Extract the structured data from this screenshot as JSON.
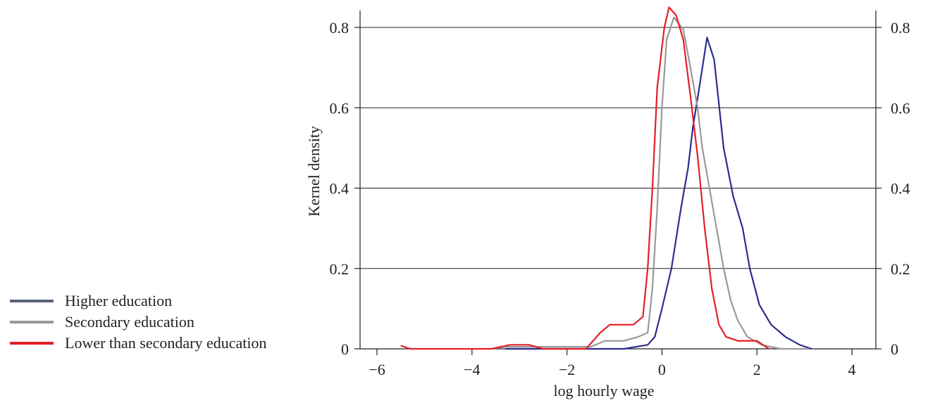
{
  "chart_data": {
    "type": "line",
    "title": "",
    "xlabel": "log hourly wage",
    "ylabel": "Kernel density",
    "xlim": [
      -6.3,
      4.6
    ],
    "ylim": [
      0,
      0.85
    ],
    "xticks": [
      -6,
      -4,
      -2,
      0,
      2,
      4
    ],
    "xtick_labels": [
      "−6",
      "−4",
      "−2",
      "0",
      "2",
      "4"
    ],
    "yticks": [
      0,
      0.2,
      0.4,
      0.6,
      0.8
    ],
    "ytick_labels": [
      "0",
      "0.2",
      "0.4",
      "0.6",
      "0.8"
    ],
    "grid": "horizontal",
    "legend_position": "left",
    "series": [
      {
        "name": "Higher education",
        "legend_color": "#5a6478",
        "line_color": "#2b2e8c",
        "points": [
          [
            -3.3,
            0.0
          ],
          [
            -2.0,
            0.0
          ],
          [
            -0.8,
            0.0
          ],
          [
            -0.3,
            0.01
          ],
          [
            -0.15,
            0.03
          ],
          [
            0.0,
            0.1
          ],
          [
            0.2,
            0.2
          ],
          [
            0.4,
            0.35
          ],
          [
            0.55,
            0.45
          ],
          [
            0.65,
            0.55
          ],
          [
            0.8,
            0.66
          ],
          [
            0.95,
            0.775
          ],
          [
            1.1,
            0.72
          ],
          [
            1.3,
            0.5
          ],
          [
            1.5,
            0.38
          ],
          [
            1.7,
            0.3
          ],
          [
            1.85,
            0.2
          ],
          [
            2.05,
            0.11
          ],
          [
            2.3,
            0.06
          ],
          [
            2.6,
            0.03
          ],
          [
            2.9,
            0.01
          ],
          [
            3.15,
            0.0
          ]
        ]
      },
      {
        "name": "Secondary education",
        "legend_color": "#999999",
        "line_color": "#999999",
        "points": [
          [
            -3.6,
            0.0
          ],
          [
            -3.3,
            0.005
          ],
          [
            -2.0,
            0.005
          ],
          [
            -1.5,
            0.005
          ],
          [
            -1.2,
            0.02
          ],
          [
            -0.8,
            0.02
          ],
          [
            -0.5,
            0.03
          ],
          [
            -0.3,
            0.04
          ],
          [
            -0.2,
            0.15
          ],
          [
            -0.1,
            0.35
          ],
          [
            0.0,
            0.6
          ],
          [
            0.1,
            0.77
          ],
          [
            0.25,
            0.825
          ],
          [
            0.45,
            0.795
          ],
          [
            0.6,
            0.7
          ],
          [
            0.75,
            0.6
          ],
          [
            0.85,
            0.5
          ],
          [
            1.0,
            0.4
          ],
          [
            1.15,
            0.3
          ],
          [
            1.3,
            0.2
          ],
          [
            1.45,
            0.12
          ],
          [
            1.6,
            0.07
          ],
          [
            1.8,
            0.03
          ],
          [
            2.1,
            0.01
          ],
          [
            2.5,
            0.0
          ],
          [
            3.1,
            0.0
          ]
        ]
      },
      {
        "name": "Lower than secondary education",
        "legend_color": "#e41f26",
        "line_color": "#e41f26",
        "points": [
          [
            -5.5,
            0.008
          ],
          [
            -5.3,
            0.0
          ],
          [
            -3.6,
            0.0
          ],
          [
            -3.2,
            0.01
          ],
          [
            -2.8,
            0.01
          ],
          [
            -2.5,
            0.0
          ],
          [
            -1.6,
            0.0
          ],
          [
            -1.3,
            0.04
          ],
          [
            -1.1,
            0.06
          ],
          [
            -0.6,
            0.06
          ],
          [
            -0.4,
            0.08
          ],
          [
            -0.3,
            0.2
          ],
          [
            -0.2,
            0.4
          ],
          [
            -0.1,
            0.65
          ],
          [
            0.05,
            0.8
          ],
          [
            0.15,
            0.85
          ],
          [
            0.3,
            0.83
          ],
          [
            0.45,
            0.77
          ],
          [
            0.6,
            0.63
          ],
          [
            0.75,
            0.48
          ],
          [
            0.9,
            0.3
          ],
          [
            1.05,
            0.15
          ],
          [
            1.2,
            0.06
          ],
          [
            1.35,
            0.03
          ],
          [
            1.6,
            0.02
          ],
          [
            2.0,
            0.02
          ],
          [
            2.25,
            0.0
          ]
        ]
      }
    ]
  }
}
